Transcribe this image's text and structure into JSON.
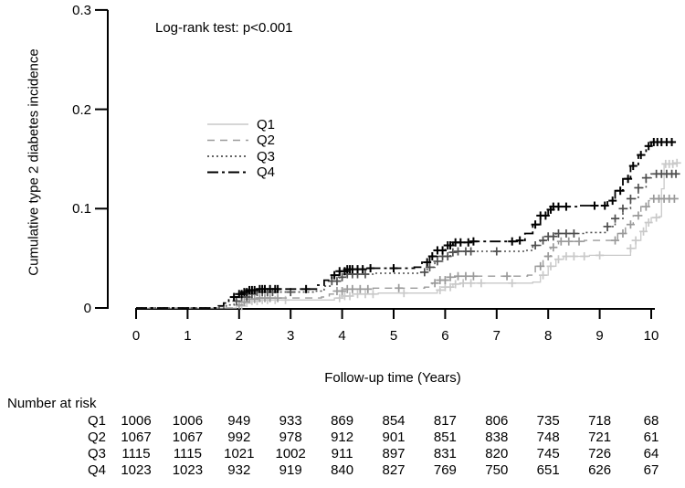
{
  "annotation": "Log-rank test: p<0.001",
  "risk_table": {
    "header": "Number at risk",
    "rows": [
      {
        "label": "Q1",
        "values": [
          "1006",
          "1006",
          "949",
          "933",
          "869",
          "854",
          "817",
          "806",
          "735",
          "718",
          "68"
        ]
      },
      {
        "label": "Q2",
        "values": [
          "1067",
          "1067",
          "992",
          "978",
          "912",
          "901",
          "851",
          "838",
          "748",
          "721",
          "61"
        ]
      },
      {
        "label": "Q3",
        "values": [
          "1115",
          "1115",
          "1021",
          "1002",
          "911",
          "897",
          "831",
          "820",
          "745",
          "726",
          "64"
        ]
      },
      {
        "label": "Q4",
        "values": [
          "1023",
          "1023",
          "932",
          "919",
          "840",
          "827",
          "769",
          "750",
          "651",
          "626",
          "67"
        ]
      }
    ]
  },
  "chart_data": {
    "type": "line",
    "subtype": "kaplan-meier-cumulative-incidence",
    "title": "",
    "annotation": "Log-rank test: p<0.001",
    "xlabel": "Follow-up time (Years)",
    "ylabel": "Cumulative type 2 diabetes incidence",
    "xlim": [
      0,
      10.6
    ],
    "ylim": [
      0,
      0.3
    ],
    "x_ticks": [
      "0",
      "1",
      "2",
      "3",
      "4",
      "5",
      "6",
      "7",
      "8",
      "9",
      "10"
    ],
    "y_ticks": [
      "0",
      "0.1",
      "0.2",
      "0.3"
    ],
    "y_tick_values": [
      0,
      0.1,
      0.2,
      0.3
    ],
    "x_tick_values": [
      0,
      1,
      2,
      3,
      4,
      5,
      6,
      7,
      8,
      9,
      10
    ],
    "grid": false,
    "legend_position": "inside-upper-left",
    "series": [
      {
        "name": "Q1",
        "color": "#c9c9c9",
        "dash": "solid",
        "line_width": 1.3,
        "points": [
          [
            0,
            0
          ],
          [
            1.8,
            0
          ],
          [
            1.95,
            0.002
          ],
          [
            2.1,
            0.005
          ],
          [
            2.25,
            0.007
          ],
          [
            2.4,
            0.008
          ],
          [
            3.7,
            0.008
          ],
          [
            3.85,
            0.01
          ],
          [
            4.0,
            0.012
          ],
          [
            4.2,
            0.014
          ],
          [
            4.7,
            0.015
          ],
          [
            5.7,
            0.015
          ],
          [
            5.85,
            0.018
          ],
          [
            6.0,
            0.021
          ],
          [
            6.15,
            0.024
          ],
          [
            6.3,
            0.025
          ],
          [
            7.7,
            0.026
          ],
          [
            7.85,
            0.033
          ],
          [
            8.0,
            0.042
          ],
          [
            8.15,
            0.049
          ],
          [
            8.3,
            0.052
          ],
          [
            8.8,
            0.053
          ],
          [
            9.5,
            0.053
          ],
          [
            9.6,
            0.06
          ],
          [
            9.7,
            0.068
          ],
          [
            9.8,
            0.077
          ],
          [
            9.9,
            0.086
          ],
          [
            10.0,
            0.091
          ],
          [
            10.15,
            0.092
          ],
          [
            10.2,
            0.12
          ],
          [
            10.25,
            0.145
          ],
          [
            10.5,
            0.146
          ]
        ],
        "censor_years": [
          2.05,
          2.15,
          2.25,
          2.35,
          2.45,
          2.55,
          2.7,
          2.9,
          3.95,
          4.05,
          4.15,
          4.3,
          4.45,
          4.6,
          5.2,
          5.9,
          6.0,
          6.1,
          6.2,
          6.35,
          6.5,
          6.7,
          7.3,
          7.9,
          8.05,
          8.2,
          8.35,
          8.5,
          8.7,
          9.0,
          9.6,
          9.7,
          9.85,
          9.95,
          10.1,
          10.28,
          10.35,
          10.42,
          10.5
        ]
      },
      {
        "name": "Q2",
        "color": "#9a9a9a",
        "dash": "dashed",
        "line_width": 1.4,
        "points": [
          [
            0,
            0
          ],
          [
            1.75,
            0
          ],
          [
            1.9,
            0.003
          ],
          [
            2.05,
            0.006
          ],
          [
            2.2,
            0.009
          ],
          [
            2.35,
            0.01
          ],
          [
            3.6,
            0.011
          ],
          [
            3.75,
            0.014
          ],
          [
            3.9,
            0.017
          ],
          [
            4.1,
            0.019
          ],
          [
            4.6,
            0.02
          ],
          [
            5.6,
            0.021
          ],
          [
            5.75,
            0.025
          ],
          [
            5.9,
            0.028
          ],
          [
            6.05,
            0.031
          ],
          [
            6.2,
            0.032
          ],
          [
            7.6,
            0.033
          ],
          [
            7.75,
            0.042
          ],
          [
            7.9,
            0.052
          ],
          [
            8.05,
            0.061
          ],
          [
            8.2,
            0.067
          ],
          [
            8.7,
            0.068
          ],
          [
            9.2,
            0.068
          ],
          [
            9.35,
            0.075
          ],
          [
            9.5,
            0.084
          ],
          [
            9.65,
            0.093
          ],
          [
            9.8,
            0.102
          ],
          [
            9.95,
            0.108
          ],
          [
            10.05,
            0.11
          ],
          [
            10.5,
            0.11
          ]
        ],
        "censor_years": [
          2.0,
          2.1,
          2.2,
          2.3,
          2.4,
          2.5,
          2.6,
          2.75,
          3.9,
          4.0,
          4.1,
          4.2,
          4.35,
          4.5,
          5.1,
          5.8,
          5.9,
          6.0,
          6.1,
          6.25,
          6.4,
          6.55,
          7.2,
          7.85,
          8.0,
          8.1,
          8.25,
          8.4,
          8.6,
          9.3,
          9.45,
          9.6,
          9.75,
          9.9,
          10.05,
          10.15,
          10.25,
          10.35,
          10.45
        ]
      },
      {
        "name": "Q3",
        "color": "#4f4f4f",
        "dash": "dotted",
        "line_width": 1.6,
        "points": [
          [
            0,
            0
          ],
          [
            1.6,
            0
          ],
          [
            1.75,
            0.003
          ],
          [
            1.9,
            0.007
          ],
          [
            2.05,
            0.011
          ],
          [
            2.2,
            0.014
          ],
          [
            2.35,
            0.016
          ],
          [
            3.5,
            0.017
          ],
          [
            3.65,
            0.022
          ],
          [
            3.8,
            0.027
          ],
          [
            3.95,
            0.031
          ],
          [
            4.1,
            0.034
          ],
          [
            4.6,
            0.035
          ],
          [
            5.5,
            0.036
          ],
          [
            5.65,
            0.041
          ],
          [
            5.8,
            0.047
          ],
          [
            5.95,
            0.052
          ],
          [
            6.1,
            0.056
          ],
          [
            6.25,
            0.057
          ],
          [
            7.55,
            0.058
          ],
          [
            7.7,
            0.063
          ],
          [
            7.85,
            0.068
          ],
          [
            8.0,
            0.072
          ],
          [
            8.15,
            0.075
          ],
          [
            8.7,
            0.076
          ],
          [
            9.0,
            0.076
          ],
          [
            9.15,
            0.082
          ],
          [
            9.3,
            0.09
          ],
          [
            9.45,
            0.1
          ],
          [
            9.6,
            0.11
          ],
          [
            9.75,
            0.121
          ],
          [
            9.9,
            0.131
          ],
          [
            10.0,
            0.135
          ],
          [
            10.5,
            0.136
          ]
        ],
        "censor_years": [
          1.95,
          2.05,
          2.15,
          2.25,
          2.35,
          2.45,
          2.55,
          2.65,
          3.0,
          3.8,
          3.9,
          4.0,
          4.1,
          4.2,
          4.3,
          4.45,
          5.6,
          5.7,
          5.85,
          5.95,
          6.05,
          6.15,
          6.25,
          6.4,
          6.5,
          7.0,
          7.75,
          7.9,
          8.0,
          8.1,
          8.2,
          8.35,
          8.5,
          9.15,
          9.3,
          9.45,
          9.6,
          9.75,
          9.9,
          10.1,
          10.2,
          10.3,
          10.4,
          10.48
        ]
      },
      {
        "name": "Q4",
        "color": "#000000",
        "dash": "dashdot",
        "line_width": 1.8,
        "points": [
          [
            0,
            0
          ],
          [
            1.5,
            0
          ],
          [
            1.6,
            0.002
          ],
          [
            1.7,
            0.005
          ],
          [
            1.8,
            0.008
          ],
          [
            1.9,
            0.011
          ],
          [
            2.0,
            0.014
          ],
          [
            2.1,
            0.016
          ],
          [
            2.2,
            0.018
          ],
          [
            2.35,
            0.019
          ],
          [
            3.4,
            0.019
          ],
          [
            3.5,
            0.023
          ],
          [
            3.65,
            0.028
          ],
          [
            3.8,
            0.033
          ],
          [
            3.95,
            0.037
          ],
          [
            4.1,
            0.039
          ],
          [
            4.5,
            0.04
          ],
          [
            5.4,
            0.041
          ],
          [
            5.55,
            0.046
          ],
          [
            5.7,
            0.052
          ],
          [
            5.85,
            0.058
          ],
          [
            6.0,
            0.063
          ],
          [
            6.15,
            0.066
          ],
          [
            6.5,
            0.067
          ],
          [
            7.4,
            0.068
          ],
          [
            7.55,
            0.075
          ],
          [
            7.7,
            0.084
          ],
          [
            7.85,
            0.093
          ],
          [
            8.0,
            0.099
          ],
          [
            8.1,
            0.102
          ],
          [
            8.6,
            0.103
          ],
          [
            9.05,
            0.103
          ],
          [
            9.15,
            0.108
          ],
          [
            9.3,
            0.118
          ],
          [
            9.45,
            0.13
          ],
          [
            9.6,
            0.143
          ],
          [
            9.75,
            0.154
          ],
          [
            9.9,
            0.163
          ],
          [
            10.0,
            0.167
          ],
          [
            10.5,
            0.167
          ]
        ],
        "censor_years": [
          1.9,
          2.0,
          2.05,
          2.1,
          2.15,
          2.2,
          2.25,
          2.3,
          2.4,
          2.45,
          2.5,
          2.6,
          2.7,
          2.75,
          3.3,
          3.85,
          3.95,
          4.05,
          4.1,
          4.15,
          4.2,
          4.3,
          4.4,
          4.55,
          5.0,
          5.65,
          5.75,
          5.85,
          5.95,
          6.05,
          6.1,
          6.2,
          6.3,
          6.45,
          6.55,
          7.3,
          7.45,
          7.75,
          7.85,
          7.95,
          8.05,
          8.1,
          8.2,
          8.35,
          8.9,
          9.1,
          9.25,
          9.4,
          9.55,
          9.65,
          9.8,
          9.95,
          10.05,
          10.12,
          10.2,
          10.3,
          10.4
        ]
      }
    ],
    "number_at_risk": {
      "header": "Number at risk",
      "times": [
        0,
        1,
        2,
        3,
        4,
        5,
        6,
        7,
        8,
        9,
        10
      ],
      "rows": [
        {
          "name": "Q1",
          "counts": [
            1006,
            1006,
            949,
            933,
            869,
            854,
            817,
            806,
            735,
            718,
            68
          ]
        },
        {
          "name": "Q2",
          "counts": [
            1067,
            1067,
            992,
            978,
            912,
            901,
            851,
            838,
            748,
            721,
            61
          ]
        },
        {
          "name": "Q3",
          "counts": [
            1115,
            1115,
            1021,
            1002,
            911,
            897,
            831,
            820,
            745,
            726,
            64
          ]
        },
        {
          "name": "Q4",
          "counts": [
            1023,
            1023,
            932,
            919,
            840,
            827,
            769,
            750,
            651,
            626,
            67
          ]
        }
      ]
    },
    "colors": {
      "axis": "#000000",
      "background": "#ffffff"
    }
  }
}
